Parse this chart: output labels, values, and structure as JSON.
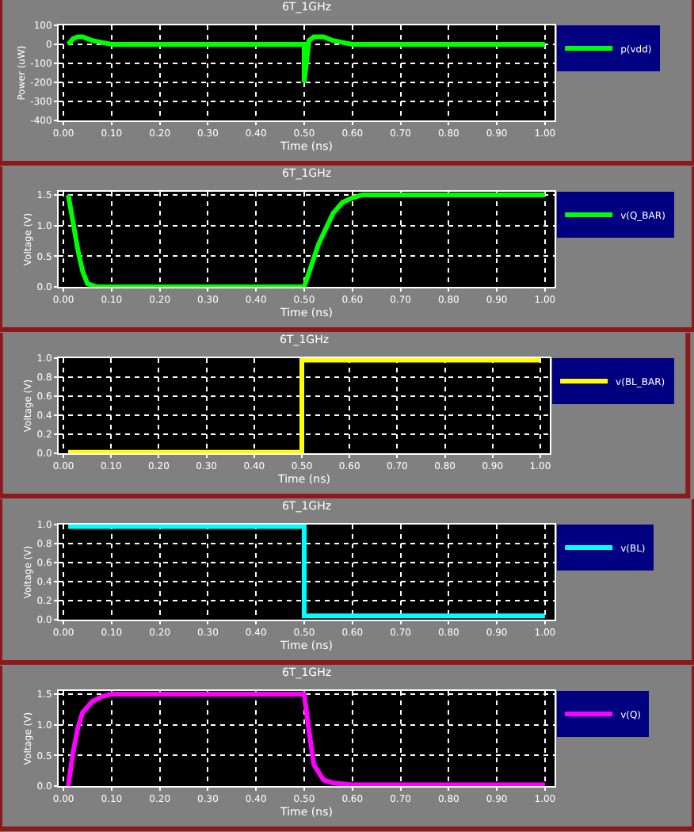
{
  "chart_data": [
    {
      "type": "line",
      "title": "6T_1GHz",
      "xlabel": "Time (ns)",
      "ylabel": "Power (uW)",
      "xlim": [
        -0.01,
        1.02
      ],
      "xticks": [
        {
          "value": 0,
          "label": "0.00"
        },
        {
          "value": 0.1,
          "label": "0.10"
        },
        {
          "value": 0.2,
          "label": "0.20"
        },
        {
          "value": 0.3,
          "label": "0.30"
        },
        {
          "value": 0.4,
          "label": "0.40"
        },
        {
          "value": 0.5,
          "label": "0.50"
        },
        {
          "value": 0.6,
          "label": "0.60"
        },
        {
          "value": 0.7,
          "label": "0.70"
        },
        {
          "value": 0.8,
          "label": "0.80"
        },
        {
          "value": 0.9,
          "label": "0.90"
        },
        {
          "value": 1.0,
          "label": "1.00"
        }
      ],
      "ylim": [
        -400,
        100
      ],
      "yticks": [
        100,
        0,
        -100,
        -200,
        -300,
        -400
      ],
      "grid": true,
      "legend": "top right",
      "series": [
        {
          "name": "p(vdd)",
          "color": "#00ff00",
          "x": [
            0.01,
            0.02,
            0.03,
            0.04,
            0.06,
            0.08,
            0.1,
            0.3,
            0.5,
            0.5,
            0.51,
            0.52,
            0.54,
            0.56,
            0.58,
            0.6,
            0.8,
            1.0
          ],
          "values": [
            0,
            30,
            40,
            40,
            20,
            10,
            0,
            0,
            0,
            -200,
            20,
            40,
            40,
            20,
            10,
            0,
            0,
            0
          ]
        }
      ]
    },
    {
      "type": "line",
      "title": "6T_1GHz",
      "xlabel": "Time (ns)",
      "ylabel": "Voltage (V)",
      "xlim": [
        -0.01,
        1.02
      ],
      "xticks": [
        {
          "value": 0,
          "label": "0.00"
        },
        {
          "value": 0.1,
          "label": "0.10"
        },
        {
          "value": 0.2,
          "label": "0.20"
        },
        {
          "value": 0.3,
          "label": "0.30"
        },
        {
          "value": 0.4,
          "label": "0.40"
        },
        {
          "value": 0.5,
          "label": "0.50"
        },
        {
          "value": 0.6,
          "label": "0.60"
        },
        {
          "value": 0.7,
          "label": "0.70"
        },
        {
          "value": 0.8,
          "label": "0.80"
        },
        {
          "value": 0.9,
          "label": "0.90"
        },
        {
          "value": 1.0,
          "label": "1.00"
        }
      ],
      "ylim": [
        0,
        1.55
      ],
      "yticks": [
        {
          "value": 0,
          "label": "0.0"
        },
        {
          "value": 0.5,
          "label": "0.5"
        },
        {
          "value": 1.0,
          "label": "1.0"
        },
        {
          "value": 1.5,
          "label": "1.5"
        }
      ],
      "grid": true,
      "legend": "top right",
      "series": [
        {
          "name": "v(Q_BAR)",
          "color": "#00ff00",
          "x": [
            0.01,
            0.03,
            0.04,
            0.05,
            0.07,
            0.3,
            0.5,
            0.53,
            0.56,
            0.58,
            0.6,
            0.62,
            0.8,
            1.0
          ],
          "values": [
            1.5,
            0.6,
            0.25,
            0.05,
            0,
            0,
            0,
            0.7,
            1.2,
            1.38,
            1.45,
            1.5,
            1.5,
            1.5
          ]
        }
      ]
    },
    {
      "type": "line",
      "title": "6T_1GHz",
      "xlabel": "Time (ns)",
      "ylabel": "Voltage (V)",
      "xlim": [
        -0.01,
        1.02
      ],
      "xticks": [
        {
          "value": 0,
          "label": "0.00"
        },
        {
          "value": 0.1,
          "label": "0.10"
        },
        {
          "value": 0.2,
          "label": "0.20"
        },
        {
          "value": 0.3,
          "label": "0.30"
        },
        {
          "value": 0.4,
          "label": "0.40"
        },
        {
          "value": 0.5,
          "label": "0.50"
        },
        {
          "value": 0.6,
          "label": "0.60"
        },
        {
          "value": 0.7,
          "label": "0.70"
        },
        {
          "value": 0.8,
          "label": "0.80"
        },
        {
          "value": 0.9,
          "label": "0.90"
        },
        {
          "value": 1.0,
          "label": "1.00"
        }
      ],
      "ylim": [
        0,
        1.0
      ],
      "yticks": [
        {
          "value": 0,
          "label": "0.0"
        },
        {
          "value": 0.2,
          "label": "0.2"
        },
        {
          "value": 0.4,
          "label": "0.4"
        },
        {
          "value": 0.6,
          "label": "0.6"
        },
        {
          "value": 0.8,
          "label": "0.8"
        },
        {
          "value": 1.0,
          "label": "1.0"
        }
      ],
      "grid": true,
      "legend": "top right",
      "series": [
        {
          "name": "v(BL_BAR)",
          "color": "#ffff00",
          "x": [
            0.01,
            0.5,
            0.5,
            1.0
          ],
          "values": [
            0.01,
            0.01,
            0.98,
            0.98
          ]
        }
      ]
    },
    {
      "type": "line",
      "title": "6T_1GHz",
      "xlabel": "Time (ns)",
      "ylabel": "Voltage (V)",
      "xlim": [
        -0.01,
        1.02
      ],
      "xticks": [
        {
          "value": 0,
          "label": "0.00"
        },
        {
          "value": 0.1,
          "label": "0.10"
        },
        {
          "value": 0.2,
          "label": "0.20"
        },
        {
          "value": 0.3,
          "label": "0.30"
        },
        {
          "value": 0.4,
          "label": "0.40"
        },
        {
          "value": 0.5,
          "label": "0.50"
        },
        {
          "value": 0.6,
          "label": "0.60"
        },
        {
          "value": 0.7,
          "label": "0.70"
        },
        {
          "value": 0.8,
          "label": "0.80"
        },
        {
          "value": 0.9,
          "label": "0.90"
        },
        {
          "value": 1.0,
          "label": "1.00"
        }
      ],
      "ylim": [
        0,
        1.0
      ],
      "yticks": [
        {
          "value": 0,
          "label": "0.0"
        },
        {
          "value": 0.2,
          "label": "0.2"
        },
        {
          "value": 0.4,
          "label": "0.4"
        },
        {
          "value": 0.6,
          "label": "0.6"
        },
        {
          "value": 0.8,
          "label": "0.8"
        },
        {
          "value": 1.0,
          "label": "1.0"
        }
      ],
      "grid": true,
      "legend": "top right",
      "series": [
        {
          "name": "v(BL)",
          "color": "#00ffff",
          "x": [
            0.01,
            0.5,
            0.5,
            1.0
          ],
          "values": [
            0.98,
            0.98,
            0.04,
            0.04
          ]
        }
      ]
    },
    {
      "type": "line",
      "title": "6T_1GHz",
      "xlabel": "Time (ns)",
      "ylabel": "Voltage (V)",
      "xlim": [
        -0.01,
        1.02
      ],
      "xticks": [
        {
          "value": 0,
          "label": "0.00"
        },
        {
          "value": 0.1,
          "label": "0.10"
        },
        {
          "value": 0.2,
          "label": "0.20"
        },
        {
          "value": 0.3,
          "label": "0.30"
        },
        {
          "value": 0.4,
          "label": "0.40"
        },
        {
          "value": 0.5,
          "label": "0.50"
        },
        {
          "value": 0.6,
          "label": "0.60"
        },
        {
          "value": 0.7,
          "label": "0.70"
        },
        {
          "value": 0.8,
          "label": "0.80"
        },
        {
          "value": 0.9,
          "label": "0.90"
        },
        {
          "value": 1.0,
          "label": "1.00"
        }
      ],
      "ylim": [
        0,
        1.55
      ],
      "yticks": [
        {
          "value": 0,
          "label": "0.0"
        },
        {
          "value": 0.5,
          "label": "0.5"
        },
        {
          "value": 1.0,
          "label": "1.0"
        },
        {
          "value": 1.5,
          "label": "1.5"
        }
      ],
      "grid": true,
      "legend": "top right",
      "series": [
        {
          "name": "v(Q)",
          "color": "#ff00ff",
          "x": [
            0.01,
            0.02,
            0.03,
            0.04,
            0.06,
            0.08,
            0.1,
            0.3,
            0.5,
            0.51,
            0.52,
            0.54,
            0.56,
            0.6,
            0.8,
            1.0
          ],
          "values": [
            0,
            0.55,
            0.95,
            1.2,
            1.38,
            1.46,
            1.5,
            1.5,
            1.5,
            0.9,
            0.35,
            0.1,
            0.05,
            0.02,
            0.02,
            0.02
          ]
        }
      ]
    }
  ]
}
